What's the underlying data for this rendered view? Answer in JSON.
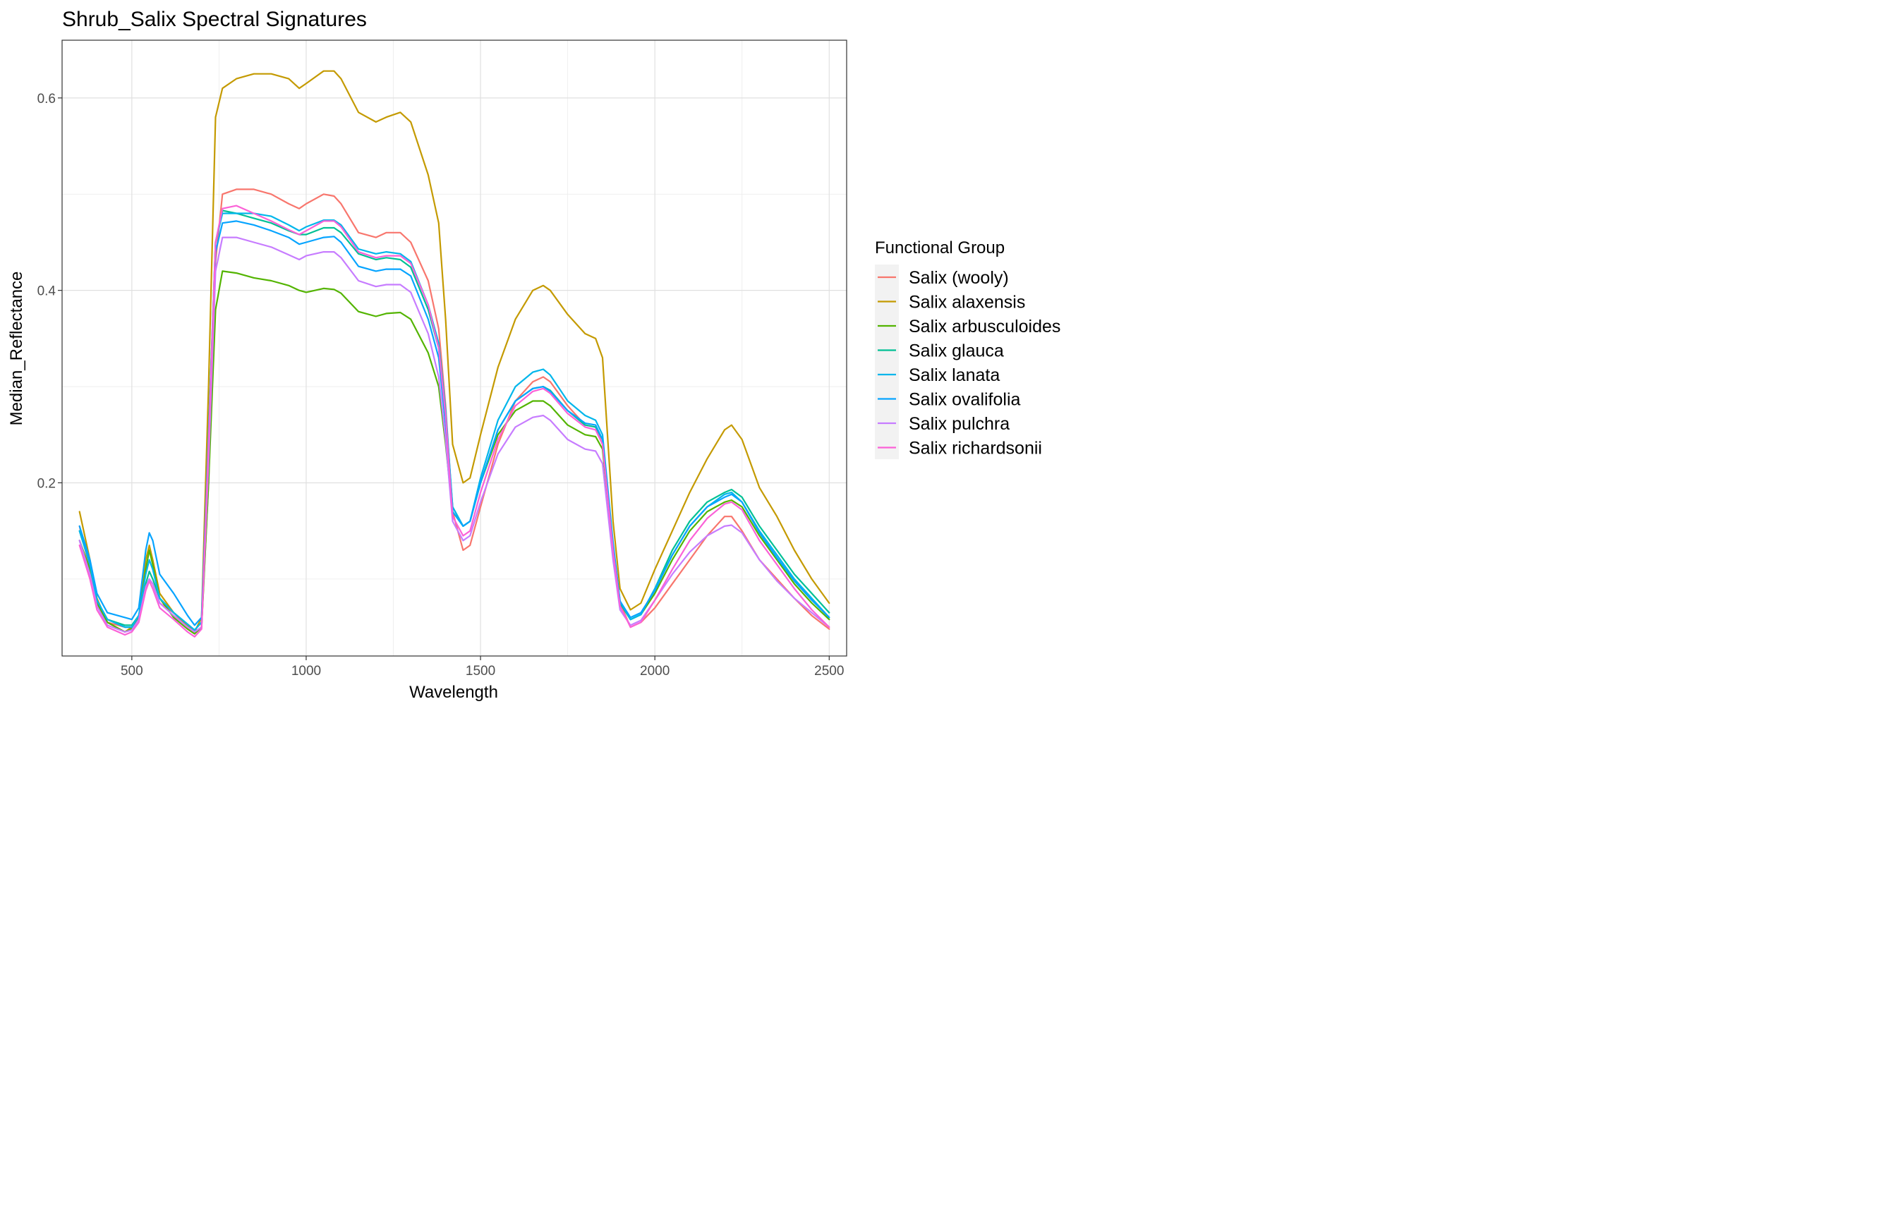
{
  "chart_data": {
    "type": "line",
    "title": "Shrub_Salix Spectral Signatures",
    "xlabel": "Wavelength",
    "ylabel": "Median_Reflectance",
    "xlim": [
      300,
      2550
    ],
    "ylim": [
      0.02,
      0.66
    ],
    "x_ticks": [
      500,
      1000,
      1500,
      2000,
      2500
    ],
    "x_tick_labels": [
      "500",
      "1000",
      "1500",
      "2000",
      "2500"
    ],
    "y_ticks": [
      0.2,
      0.4,
      0.6
    ],
    "y_tick_labels": [
      "0.2",
      "0.4",
      "0.6"
    ],
    "grid": true,
    "legend": {
      "title": "Functional Group",
      "position": "right"
    },
    "x": [
      350,
      380,
      400,
      430,
      480,
      500,
      520,
      540,
      550,
      560,
      580,
      620,
      660,
      680,
      700,
      720,
      740,
      760,
      800,
      850,
      900,
      950,
      980,
      1000,
      1050,
      1080,
      1100,
      1150,
      1200,
      1230,
      1270,
      1300,
      1350,
      1380,
      1400,
      1420,
      1450,
      1470,
      1500,
      1550,
      1600,
      1650,
      1680,
      1700,
      1750,
      1800,
      1830,
      1850,
      1880,
      1900,
      1930,
      1960,
      2000,
      2050,
      2100,
      2150,
      2200,
      2220,
      2250,
      2300,
      2350,
      2400,
      2450,
      2500
    ],
    "series": [
      {
        "name": "Salix (wooly)",
        "color": "#F8766D",
        "values": [
          0.155,
          0.11,
          0.075,
          0.055,
          0.05,
          0.05,
          0.06,
          0.09,
          0.1,
          0.095,
          0.075,
          0.065,
          0.05,
          0.045,
          0.05,
          0.2,
          0.43,
          0.5,
          0.505,
          0.505,
          0.5,
          0.49,
          0.485,
          0.49,
          0.5,
          0.498,
          0.49,
          0.46,
          0.455,
          0.46,
          0.46,
          0.45,
          0.41,
          0.36,
          0.28,
          0.17,
          0.13,
          0.135,
          0.175,
          0.24,
          0.285,
          0.305,
          0.31,
          0.305,
          0.28,
          0.26,
          0.258,
          0.24,
          0.13,
          0.075,
          0.05,
          0.055,
          0.07,
          0.095,
          0.12,
          0.145,
          0.165,
          0.165,
          0.15,
          0.12,
          0.1,
          0.08,
          0.062,
          0.048
        ]
      },
      {
        "name": "Salix alaxensis",
        "color": "#C49A00",
        "values": [
          0.17,
          0.12,
          0.08,
          0.055,
          0.045,
          0.05,
          0.06,
          0.12,
          0.135,
          0.12,
          0.085,
          0.065,
          0.052,
          0.045,
          0.06,
          0.3,
          0.58,
          0.61,
          0.62,
          0.625,
          0.625,
          0.62,
          0.61,
          0.615,
          0.628,
          0.628,
          0.62,
          0.585,
          0.575,
          0.58,
          0.585,
          0.575,
          0.52,
          0.47,
          0.37,
          0.24,
          0.2,
          0.205,
          0.25,
          0.32,
          0.37,
          0.4,
          0.405,
          0.4,
          0.375,
          0.355,
          0.35,
          0.33,
          0.16,
          0.09,
          0.068,
          0.075,
          0.11,
          0.15,
          0.19,
          0.225,
          0.255,
          0.26,
          0.245,
          0.195,
          0.165,
          0.13,
          0.1,
          0.075
        ]
      },
      {
        "name": "Salix arbusculoides",
        "color": "#53B400",
        "values": [
          0.14,
          0.11,
          0.075,
          0.055,
          0.045,
          0.048,
          0.06,
          0.11,
          0.13,
          0.115,
          0.08,
          0.06,
          0.048,
          0.043,
          0.05,
          0.2,
          0.38,
          0.42,
          0.418,
          0.413,
          0.41,
          0.405,
          0.4,
          0.398,
          0.402,
          0.401,
          0.397,
          0.378,
          0.373,
          0.376,
          0.377,
          0.37,
          0.335,
          0.3,
          0.24,
          0.17,
          0.155,
          0.16,
          0.2,
          0.25,
          0.275,
          0.285,
          0.285,
          0.28,
          0.26,
          0.25,
          0.248,
          0.235,
          0.13,
          0.075,
          0.058,
          0.063,
          0.085,
          0.12,
          0.15,
          0.17,
          0.18,
          0.182,
          0.175,
          0.145,
          0.12,
          0.095,
          0.075,
          0.058
        ]
      },
      {
        "name": "Salix glauca",
        "color": "#00C094",
        "values": [
          0.15,
          0.115,
          0.078,
          0.058,
          0.052,
          0.052,
          0.062,
          0.095,
          0.108,
          0.1,
          0.08,
          0.065,
          0.053,
          0.047,
          0.055,
          0.25,
          0.45,
          0.483,
          0.48,
          0.475,
          0.47,
          0.462,
          0.458,
          0.458,
          0.465,
          0.465,
          0.46,
          0.438,
          0.432,
          0.434,
          0.432,
          0.424,
          0.38,
          0.34,
          0.27,
          0.175,
          0.155,
          0.16,
          0.2,
          0.255,
          0.285,
          0.298,
          0.3,
          0.296,
          0.275,
          0.26,
          0.258,
          0.245,
          0.135,
          0.075,
          0.058,
          0.063,
          0.09,
          0.13,
          0.16,
          0.18,
          0.19,
          0.193,
          0.185,
          0.155,
          0.13,
          0.105,
          0.085,
          0.065
        ]
      },
      {
        "name": "Salix lanata",
        "color": "#00B6EB",
        "values": [
          0.15,
          0.115,
          0.078,
          0.058,
          0.05,
          0.05,
          0.062,
          0.105,
          0.12,
          0.11,
          0.08,
          0.065,
          0.053,
          0.047,
          0.055,
          0.25,
          0.45,
          0.48,
          0.48,
          0.48,
          0.477,
          0.468,
          0.462,
          0.466,
          0.473,
          0.473,
          0.468,
          0.443,
          0.438,
          0.44,
          0.438,
          0.43,
          0.385,
          0.345,
          0.275,
          0.175,
          0.155,
          0.16,
          0.205,
          0.265,
          0.3,
          0.315,
          0.318,
          0.312,
          0.285,
          0.27,
          0.265,
          0.25,
          0.138,
          0.077,
          0.058,
          0.063,
          0.09,
          0.125,
          0.155,
          0.175,
          0.188,
          0.19,
          0.18,
          0.15,
          0.125,
          0.1,
          0.08,
          0.06
        ]
      },
      {
        "name": "Salix ovalifolia",
        "color": "#06A4FF",
        "values": [
          0.155,
          0.12,
          0.085,
          0.065,
          0.06,
          0.058,
          0.07,
          0.13,
          0.148,
          0.14,
          0.105,
          0.085,
          0.062,
          0.052,
          0.06,
          0.24,
          0.44,
          0.47,
          0.472,
          0.468,
          0.462,
          0.455,
          0.448,
          0.45,
          0.455,
          0.456,
          0.45,
          0.425,
          0.42,
          0.422,
          0.422,
          0.415,
          0.37,
          0.33,
          0.26,
          0.17,
          0.155,
          0.16,
          0.2,
          0.255,
          0.285,
          0.298,
          0.3,
          0.295,
          0.275,
          0.262,
          0.26,
          0.245,
          0.135,
          0.077,
          0.06,
          0.065,
          0.088,
          0.125,
          0.155,
          0.175,
          0.185,
          0.188,
          0.18,
          0.148,
          0.122,
          0.098,
          0.078,
          0.06
        ]
      },
      {
        "name": "Salix pulchra",
        "color": "#C77CFF",
        "values": [
          0.14,
          0.105,
          0.072,
          0.052,
          0.045,
          0.047,
          0.058,
          0.092,
          0.1,
          0.095,
          0.075,
          0.062,
          0.05,
          0.045,
          0.05,
          0.22,
          0.42,
          0.455,
          0.455,
          0.45,
          0.445,
          0.437,
          0.432,
          0.436,
          0.44,
          0.44,
          0.434,
          0.41,
          0.404,
          0.406,
          0.406,
          0.398,
          0.355,
          0.31,
          0.245,
          0.16,
          0.14,
          0.145,
          0.18,
          0.23,
          0.258,
          0.268,
          0.27,
          0.265,
          0.245,
          0.235,
          0.233,
          0.22,
          0.12,
          0.068,
          0.052,
          0.057,
          0.078,
          0.105,
          0.128,
          0.145,
          0.155,
          0.156,
          0.148,
          0.12,
          0.098,
          0.08,
          0.065,
          0.05
        ]
      },
      {
        "name": "Salix richardsonii",
        "color": "#FB61D7",
        "values": [
          0.135,
          0.1,
          0.068,
          0.05,
          0.042,
          0.045,
          0.055,
          0.088,
          0.098,
          0.09,
          0.07,
          0.058,
          0.045,
          0.04,
          0.048,
          0.24,
          0.45,
          0.485,
          0.488,
          0.48,
          0.472,
          0.463,
          0.458,
          0.462,
          0.472,
          0.472,
          0.466,
          0.44,
          0.434,
          0.436,
          0.436,
          0.428,
          0.385,
          0.34,
          0.27,
          0.165,
          0.145,
          0.15,
          0.19,
          0.245,
          0.28,
          0.295,
          0.298,
          0.293,
          0.272,
          0.258,
          0.255,
          0.24,
          0.13,
          0.072,
          0.05,
          0.055,
          0.078,
          0.11,
          0.14,
          0.163,
          0.178,
          0.18,
          0.172,
          0.14,
          0.115,
          0.09,
          0.068,
          0.05
        ]
      }
    ]
  }
}
